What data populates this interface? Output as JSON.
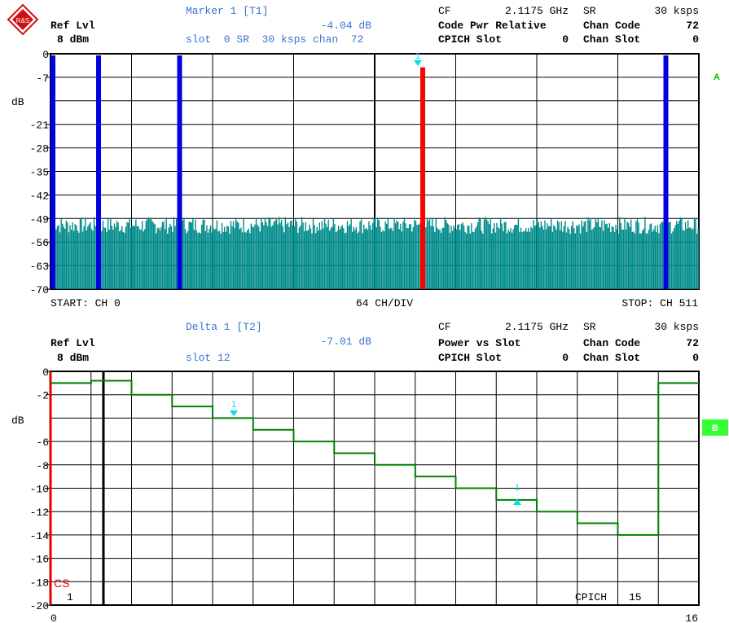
{
  "logo": {
    "text": "R&S"
  },
  "top": {
    "ref_lvl_label": "Ref Lvl",
    "ref_lvl_value": "8 dBm",
    "marker_title": "Marker 1 [T1]",
    "marker_value": "-4.04 dB",
    "marker_info": "slot  0 SR  30 ksps chan  72",
    "cf_label": "CF",
    "cf_value": "2.1175 GHz",
    "sr_label": "SR",
    "sr_value": "30 ksps",
    "mode": "Code Pwr Relative",
    "chan_code_label": "Chan Code",
    "chan_code_value": "72",
    "cpich_label": "CPICH Slot",
    "cpich_value": "0",
    "chan_slot_label": "Chan Slot",
    "chan_slot_value": "0",
    "unit": "dB",
    "trace_label": "A",
    "start_label": "START: CH 0",
    "div_label": "64 CH/DIV",
    "stop_label": "STOP: CH 511",
    "marker_flag": "1"
  },
  "bottom": {
    "ref_lvl_label": "Ref Lvl",
    "ref_lvl_value": "8 dBm",
    "delta_title": "Delta 1 [T2]",
    "delta_value": "-7.01 dB",
    "delta_info": "slot 12",
    "cf_label": "CF",
    "cf_value": "2.1175 GHz",
    "sr_label": "SR",
    "sr_value": "30 ksps",
    "mode": "Power vs Slot",
    "chan_code_label": "Chan Code",
    "chan_code_value": "72",
    "cpich_label": "CPICH Slot",
    "cpich_value": "0",
    "chan_slot_label": "Chan Slot",
    "chan_slot_value": "0",
    "unit": "dB",
    "trace_label": "B",
    "cs_label": "CS",
    "one_label": "1",
    "cpich_bottom": "CPICH",
    "cpich_bottom_num": "15",
    "x_start": "0",
    "x_end": "16",
    "marker_flag": "1",
    "delta_flag": "1"
  },
  "colors": {
    "bar_noise": "#008b8b",
    "bar_active": "#0000e0",
    "bar_marker": "#ff0000",
    "step_line": "#008000",
    "marker": "#00e0e8",
    "label_blue": "#3a73d0",
    "trace_b_bg": "#33ff33"
  },
  "chart_data": [
    {
      "type": "bar",
      "title": "Code Pwr Relative",
      "xlabel": "",
      "ylabel": "dB",
      "xlim": [
        0,
        511
      ],
      "ylim": [
        -70,
        0
      ],
      "yticks": [
        "0",
        "-7",
        "-21",
        "-28",
        "-35",
        "-42",
        "-49",
        "-56",
        "-63",
        "-70"
      ],
      "noise_floor_db": -51,
      "series": [
        {
          "values": [
            {
              "channel": 0,
              "db": -0.5
            },
            {
              "channel": 36,
              "db": -0.5
            },
            {
              "channel": 100,
              "db": -0.5
            },
            {
              "channel": 292,
              "db": -4.04
            },
            {
              "channel": 484,
              "db": -0.5
            }
          ]
        }
      ]
    },
    {
      "type": "line",
      "title": "Power vs Slot",
      "xlabel": "",
      "ylabel": "dB",
      "xlim": [
        0,
        16
      ],
      "ylim": [
        -20,
        0
      ],
      "yticks": [
        "0",
        "-2",
        "-6",
        "-8",
        "-10",
        "-12",
        "-14",
        "-16",
        "-18",
        "-20"
      ],
      "series": [
        {
          "x": [
            0,
            1,
            2,
            3,
            4,
            5,
            6,
            7,
            8,
            9,
            10,
            11,
            12,
            13,
            14,
            15
          ],
          "values": [
            -1.0,
            -0.8,
            -2,
            -3,
            -4,
            -5,
            -6,
            -7,
            -8,
            -9,
            -10,
            -11,
            -12,
            -13,
            -14,
            -1.0
          ]
        }
      ]
    }
  ]
}
